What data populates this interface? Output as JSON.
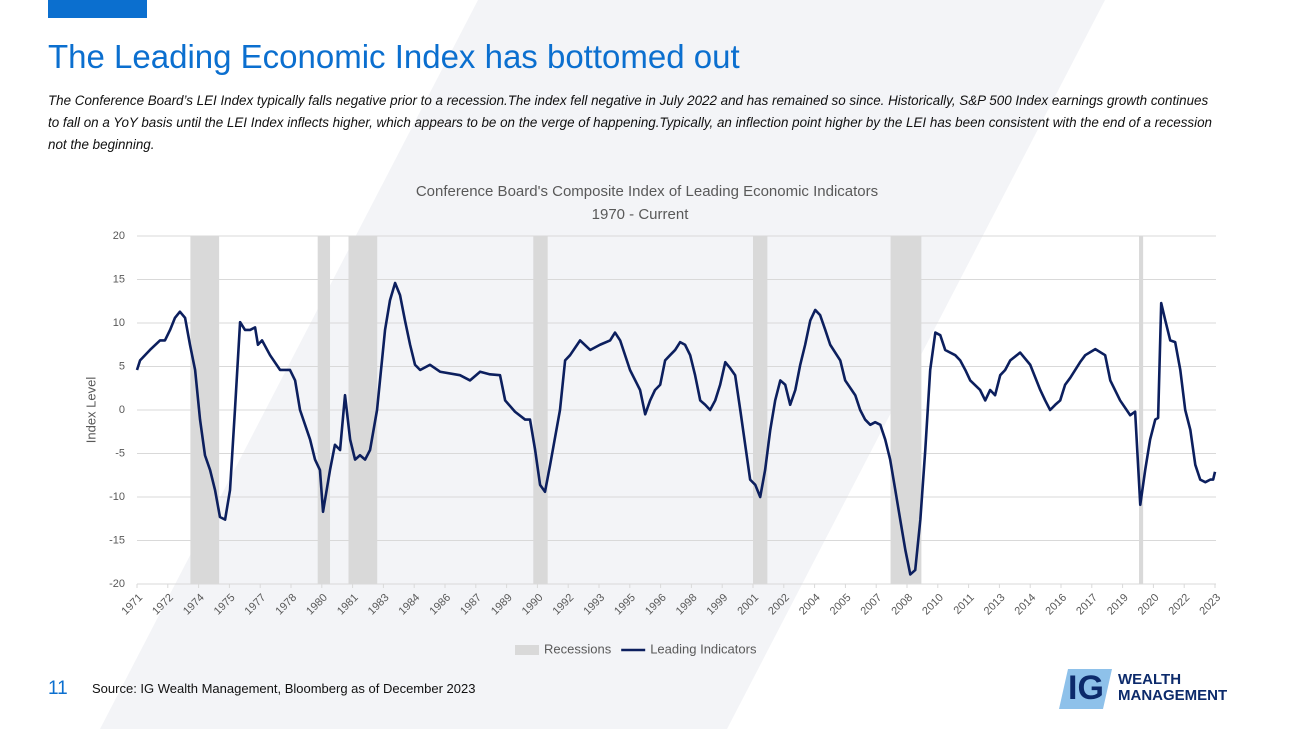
{
  "slide": {
    "title": "The Leading Economic Index has bottomed out",
    "body": "The Conference Board’s LEI Index typically falls negative prior to a recession.The index fell negative in July 2022 and has remained so since. Historically, S&P 500 Index earnings growth continues to fall on a YoY basis until the LEI Index inflects higher, which appears to be on the verge of happening.Typically, an inflection point higher by the LEI has been consistent with the end of a recession not the beginning.",
    "page_number": "11",
    "source": "Source: IG Wealth Management, Bloomberg as of December 2023",
    "logo": {
      "mark": "IG",
      "line1": "WEALTH",
      "line2": "MANAGEMENT"
    }
  },
  "chart_data": {
    "type": "line",
    "title": "Conference Board's Composite Index of Leading Economic Indicators",
    "subtitle": "1970 -  Current",
    "y_label": "Index Level",
    "xlim": [
      1971,
      2023.5
    ],
    "xticks": [
      1971,
      {
        "value": 1972.5,
        "label": "1972"
      },
      1974,
      {
        "value": 1975.5,
        "label": "1975"
      },
      1977,
      {
        "value": 1978.5,
        "label": "1978"
      },
      1980,
      {
        "value": 1981.5,
        "label": "1981"
      },
      1983,
      {
        "value": 1984.5,
        "label": "1984"
      },
      1986,
      {
        "value": 1987.5,
        "label": "1987"
      },
      1989,
      {
        "value": 1990.5,
        "label": "1990"
      },
      1992,
      {
        "value": 1993.5,
        "label": "1993"
      },
      1995,
      {
        "value": 1996.5,
        "label": "1996"
      },
      1998,
      {
        "value": 1999.5,
        "label": "1999"
      },
      2001,
      {
        "value": 2002.5,
        "label": "2002"
      },
      2004,
      {
        "value": 2005.5,
        "label": "2005"
      },
      2007,
      {
        "value": 2008.5,
        "label": "2008"
      },
      2010,
      {
        "value": 2011.5,
        "label": "2011"
      },
      2013,
      {
        "value": 2014.5,
        "label": "2014"
      },
      2016,
      {
        "value": 2017.5,
        "label": "2017"
      },
      2019,
      {
        "value": 2020.5,
        "label": "2020"
      },
      2022,
      {
        "value": 2023.5,
        "label": "2023"
      }
    ],
    "ylim": [
      -20,
      20
    ],
    "yticks": [
      -20,
      -15,
      -10,
      -5,
      0,
      5,
      10,
      15,
      20
    ],
    "grid": true,
    "legend": "bottom",
    "series": [
      {
        "name": "Recessions",
        "color": "#d9d9d9",
        "spans": [
          [
            1973.6,
            1975.0
          ],
          [
            1979.8,
            1980.4
          ],
          [
            1981.3,
            1982.7
          ],
          [
            1990.3,
            1991.0
          ],
          [
            2001.0,
            2001.7
          ],
          [
            2007.7,
            2009.2
          ],
          [
            2019.8,
            2020.0
          ]
        ]
      },
      {
        "name": "Leading Indicators",
        "color": "#0c1f5e",
        "x": [
          1971.0,
          1971.15,
          1971.63,
          1972.12,
          1972.36,
          1972.61,
          1972.85,
          1973.09,
          1973.34,
          1973.58,
          1973.83,
          1974.07,
          1974.31,
          1974.56,
          1974.8,
          1975.04,
          1975.29,
          1975.53,
          1975.77,
          1976.02,
          1976.26,
          1976.51,
          1976.75,
          1976.89,
          1977.09,
          1977.48,
          1977.97,
          1978.45,
          1978.7,
          1978.94,
          1979.43,
          1979.67,
          1979.91,
          1980.06,
          1980.4,
          1980.64,
          1980.89,
          1981.13,
          1981.38,
          1981.62,
          1981.86,
          1982.11,
          1982.35,
          1982.69,
          1983.08,
          1983.32,
          1983.57,
          1983.81,
          1984.05,
          1984.3,
          1984.54,
          1984.79,
          1985.27,
          1985.76,
          1986.73,
          1987.22,
          1987.71,
          1988.19,
          1988.68,
          1988.93,
          1989.41,
          1989.9,
          1990.14,
          1990.39,
          1990.63,
          1990.87,
          1991.12,
          1991.6,
          1991.85,
          1992.09,
          1992.58,
          1993.07,
          1993.55,
          1994.04,
          1994.28,
          1994.53,
          1995.01,
          1995.5,
          1995.75,
          1995.99,
          1996.23,
          1996.48,
          1996.72,
          1996.96,
          1997.21,
          1997.45,
          1997.69,
          1997.94,
          1998.18,
          1998.43,
          1998.67,
          1998.91,
          1999.16,
          1999.4,
          1999.65,
          1999.89,
          2000.13,
          2000.38,
          2000.62,
          2000.86,
          2001.11,
          2001.35,
          2001.59,
          2001.84,
          2002.08,
          2002.33,
          2002.57,
          2002.81,
          2003.06,
          2003.3,
          2003.54,
          2003.79,
          2004.03,
          2004.27,
          2004.52,
          2004.76,
          2005.25,
          2005.49,
          2005.98,
          2006.22,
          2006.46,
          2006.71,
          2006.95,
          2007.2,
          2007.44,
          2007.68,
          2007.93,
          2008.17,
          2008.42,
          2008.66,
          2008.9,
          2009.15,
          2009.39,
          2009.63,
          2009.88,
          2010.12,
          2010.36,
          2010.85,
          2011.09,
          2011.34,
          2011.58,
          2012.06,
          2012.31,
          2012.55,
          2012.79,
          2013.04,
          2013.28,
          2013.53,
          2014.01,
          2014.5,
          2014.99,
          2015.23,
          2015.47,
          2015.72,
          2015.96,
          2016.2,
          2016.45,
          2016.93,
          2017.18,
          2017.67,
          2018.15,
          2018.4,
          2018.88,
          2019.37,
          2019.61,
          2019.86,
          2020.1,
          2020.34,
          2020.59,
          2020.73,
          2020.88,
          2021.08,
          2021.32,
          2021.56,
          2021.81,
          2022.05,
          2022.3,
          2022.54,
          2022.78,
          2023.03,
          2023.27,
          2023.41,
          2023.5
        ],
        "values": [
          4.6,
          5.7,
          6.9,
          8,
          8,
          9.2,
          10.6,
          11.3,
          10.6,
          7.5,
          4.6,
          -1.1,
          -5.2,
          -6.9,
          -9.2,
          -12.3,
          -12.6,
          -9.2,
          0,
          10.1,
          9.2,
          9.2,
          9.5,
          7.5,
          8,
          6.3,
          4.6,
          4.6,
          3.4,
          0,
          -3.4,
          -5.7,
          -6.9,
          -11.7,
          -6.9,
          -4,
          -4.6,
          1.7,
          -3.4,
          -5.7,
          -5.2,
          -5.7,
          -4.6,
          0,
          9.2,
          12.6,
          14.6,
          13.2,
          10.3,
          7.5,
          5.2,
          4.6,
          5.2,
          4.4,
          4,
          3.4,
          4.4,
          4.1,
          4,
          1.1,
          -0.2,
          -1.1,
          -1.1,
          -4.6,
          -8.6,
          -9.4,
          -6.3,
          0,
          5.7,
          6.3,
          8,
          6.9,
          7.5,
          8,
          8.9,
          8,
          4.6,
          2.3,
          -0.5,
          1.1,
          2.3,
          2.9,
          5.7,
          6.3,
          6.9,
          7.8,
          7.5,
          6.3,
          4,
          1.1,
          0.6,
          0,
          1.1,
          2.9,
          5.5,
          4.8,
          4,
          0,
          -4,
          -8,
          -8.6,
          -10,
          -6.9,
          -2.3,
          1.1,
          3.4,
          2.9,
          0.6,
          2.3,
          5.2,
          7.5,
          10.3,
          11.5,
          10.9,
          9.2,
          7.5,
          5.7,
          3.4,
          1.7,
          0,
          -1.1,
          -1.7,
          -1.4,
          -1.7,
          -3.4,
          -5.7,
          -9.2,
          -12.6,
          -16.1,
          -18.9,
          -18.4,
          -12.6,
          -4.6,
          4.6,
          8.9,
          8.6,
          6.9,
          6.3,
          5.7,
          4.6,
          3.4,
          2.3,
          1.1,
          2.3,
          1.7,
          4,
          4.6,
          5.7,
          6.6,
          5.2,
          2.3,
          1.1,
          0,
          0.6,
          1.1,
          2.9,
          3.7,
          5.5,
          6.3,
          7,
          6.3,
          3.4,
          1.1,
          -0.6,
          -0.2,
          -10.9,
          -6.9,
          -3.4,
          -1.1,
          -0.9,
          12.3,
          10.3,
          8,
          7.8,
          4.6,
          0,
          -2.3,
          -6.3,
          -8,
          -8.3,
          -8,
          -8,
          -7.1
        ]
      }
    ]
  }
}
